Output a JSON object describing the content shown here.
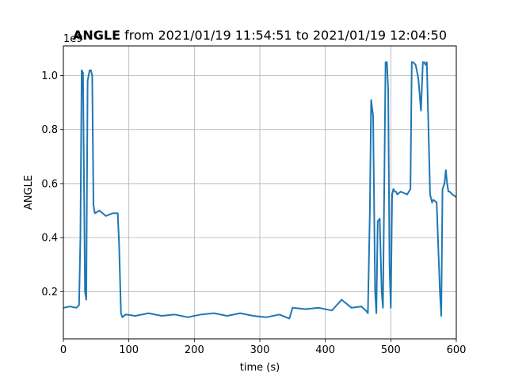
{
  "chart_data": {
    "type": "line",
    "title_bold": "ANGLE",
    "title_rest": " from 2021/01/19 11:54:51 to 2021/01/19 12:04:50",
    "xlabel": "time (s)",
    "ylabel": "ANGLE",
    "y_offset_label": "1e9",
    "xlim": [
      0,
      600
    ],
    "ylim": [
      0.025,
      1.11
    ],
    "x_ticks": [
      0,
      100,
      200,
      300,
      400,
      500,
      600
    ],
    "y_ticks": [
      0.2,
      0.4,
      0.6,
      0.8,
      1.0
    ],
    "x_tick_labels": [
      "0",
      "100",
      "200",
      "300",
      "400",
      "500",
      "600"
    ],
    "y_tick_labels": [
      "0.2",
      "0.4",
      "0.6",
      "0.8",
      "1.0"
    ],
    "grid": true,
    "color": "#1f77b4",
    "series": [
      {
        "x": [
          0,
          10,
          20,
          24,
          26,
          28,
          30,
          33,
          35,
          37,
          40,
          42,
          44,
          46,
          48,
          55,
          65,
          75,
          83,
          85,
          88,
          90,
          95,
          110,
          130,
          150,
          170,
          190,
          210,
          230,
          250,
          270,
          290,
          310,
          330,
          345,
          350,
          370,
          390,
          410,
          425,
          440,
          455,
          462,
          465,
          468,
          470,
          473,
          476,
          478,
          480,
          483,
          486,
          488,
          490,
          492,
          494,
          496,
          498,
          500,
          502,
          504,
          506,
          508,
          510,
          515,
          525,
          530,
          532,
          534,
          538,
          542,
          546,
          549,
          551,
          553,
          555,
          560,
          563,
          565,
          570,
          575,
          577,
          579,
          582,
          584,
          586,
          588,
          590,
          594,
          600
        ],
        "y": [
          0.14,
          0.145,
          0.14,
          0.15,
          0.4,
          1.02,
          1.01,
          0.2,
          0.17,
          0.98,
          1.02,
          1.02,
          1.0,
          0.52,
          0.49,
          0.5,
          0.48,
          0.49,
          0.49,
          0.38,
          0.12,
          0.105,
          0.115,
          0.11,
          0.12,
          0.11,
          0.115,
          0.105,
          0.115,
          0.12,
          0.11,
          0.12,
          0.11,
          0.105,
          0.115,
          0.1,
          0.14,
          0.135,
          0.14,
          0.13,
          0.17,
          0.14,
          0.145,
          0.13,
          0.12,
          0.5,
          0.91,
          0.85,
          0.2,
          0.12,
          0.46,
          0.47,
          0.2,
          0.14,
          0.6,
          1.05,
          1.05,
          0.95,
          0.3,
          0.14,
          0.56,
          0.58,
          0.57,
          0.57,
          0.56,
          0.57,
          0.56,
          0.58,
          1.05,
          1.05,
          1.04,
          0.99,
          0.87,
          1.05,
          1.05,
          1.04,
          1.05,
          0.56,
          0.53,
          0.54,
          0.53,
          0.2,
          0.11,
          0.58,
          0.6,
          0.65,
          0.6,
          0.57,
          0.57,
          0.56,
          0.55
        ]
      }
    ]
  }
}
